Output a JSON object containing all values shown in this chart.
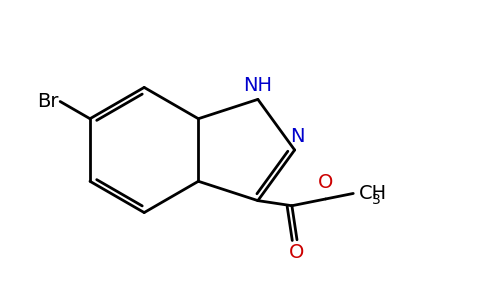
{
  "background_color": "#ffffff",
  "bond_color": "#000000",
  "nitrogen_color": "#0000cc",
  "oxygen_color": "#cc0000",
  "line_width": 2.0,
  "font_size_atoms": 14,
  "font_size_sub": 10,
  "xlim": [
    -4.5,
    5.5
  ],
  "ylim": [
    -4.0,
    4.0
  ]
}
